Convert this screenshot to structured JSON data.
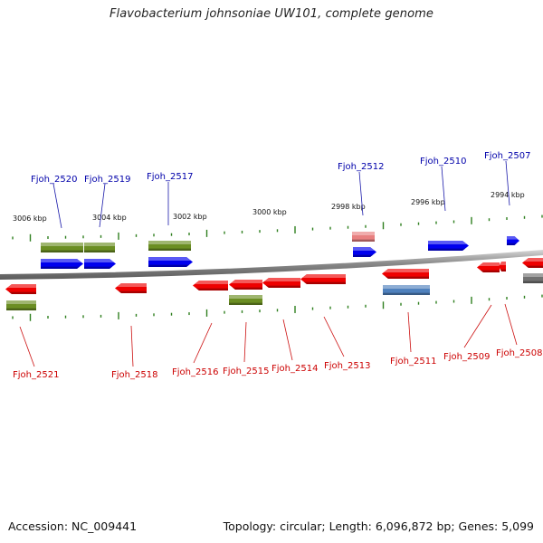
{
  "title": "Flavobacterium johnsoniae UW101, complete genome",
  "footer": {
    "accession": "Accession: NC_009441",
    "summary": "Topology: circular; Length: 6,096,872 bp; Genes: 5,099"
  },
  "colors": {
    "forward_gene": "#0000ee",
    "reverse_gene": "#ee0000",
    "rna_gene": "#6b8e23",
    "pseudo_gene": "#e88080",
    "other_reverse": "#4f81bd",
    "unknown": "#707070",
    "tick": "#2f7f1f",
    "backbone": "#8a8a8a",
    "label_forward": "#0000aa",
    "label_reverse": "#cc0000"
  },
  "kbp_markers": [
    "3006 kbp",
    "3004 kbp",
    "3002 kbp",
    "3000 kbp",
    "2998 kbp",
    "2996 kbp",
    "2994 kbp"
  ],
  "forward_genes": [
    "Fjoh_2520",
    "Fjoh_2519",
    "Fjoh_2517",
    "Fjoh_2512",
    "Fjoh_2510",
    "Fjoh_2507"
  ],
  "reverse_genes": [
    "Fjoh_2521",
    "Fjoh_2518",
    "Fjoh_2516",
    "Fjoh_2515",
    "Fjoh_2514",
    "Fjoh_2513",
    "Fjoh_2511",
    "Fjoh_2509",
    "Fjoh_2508"
  ]
}
